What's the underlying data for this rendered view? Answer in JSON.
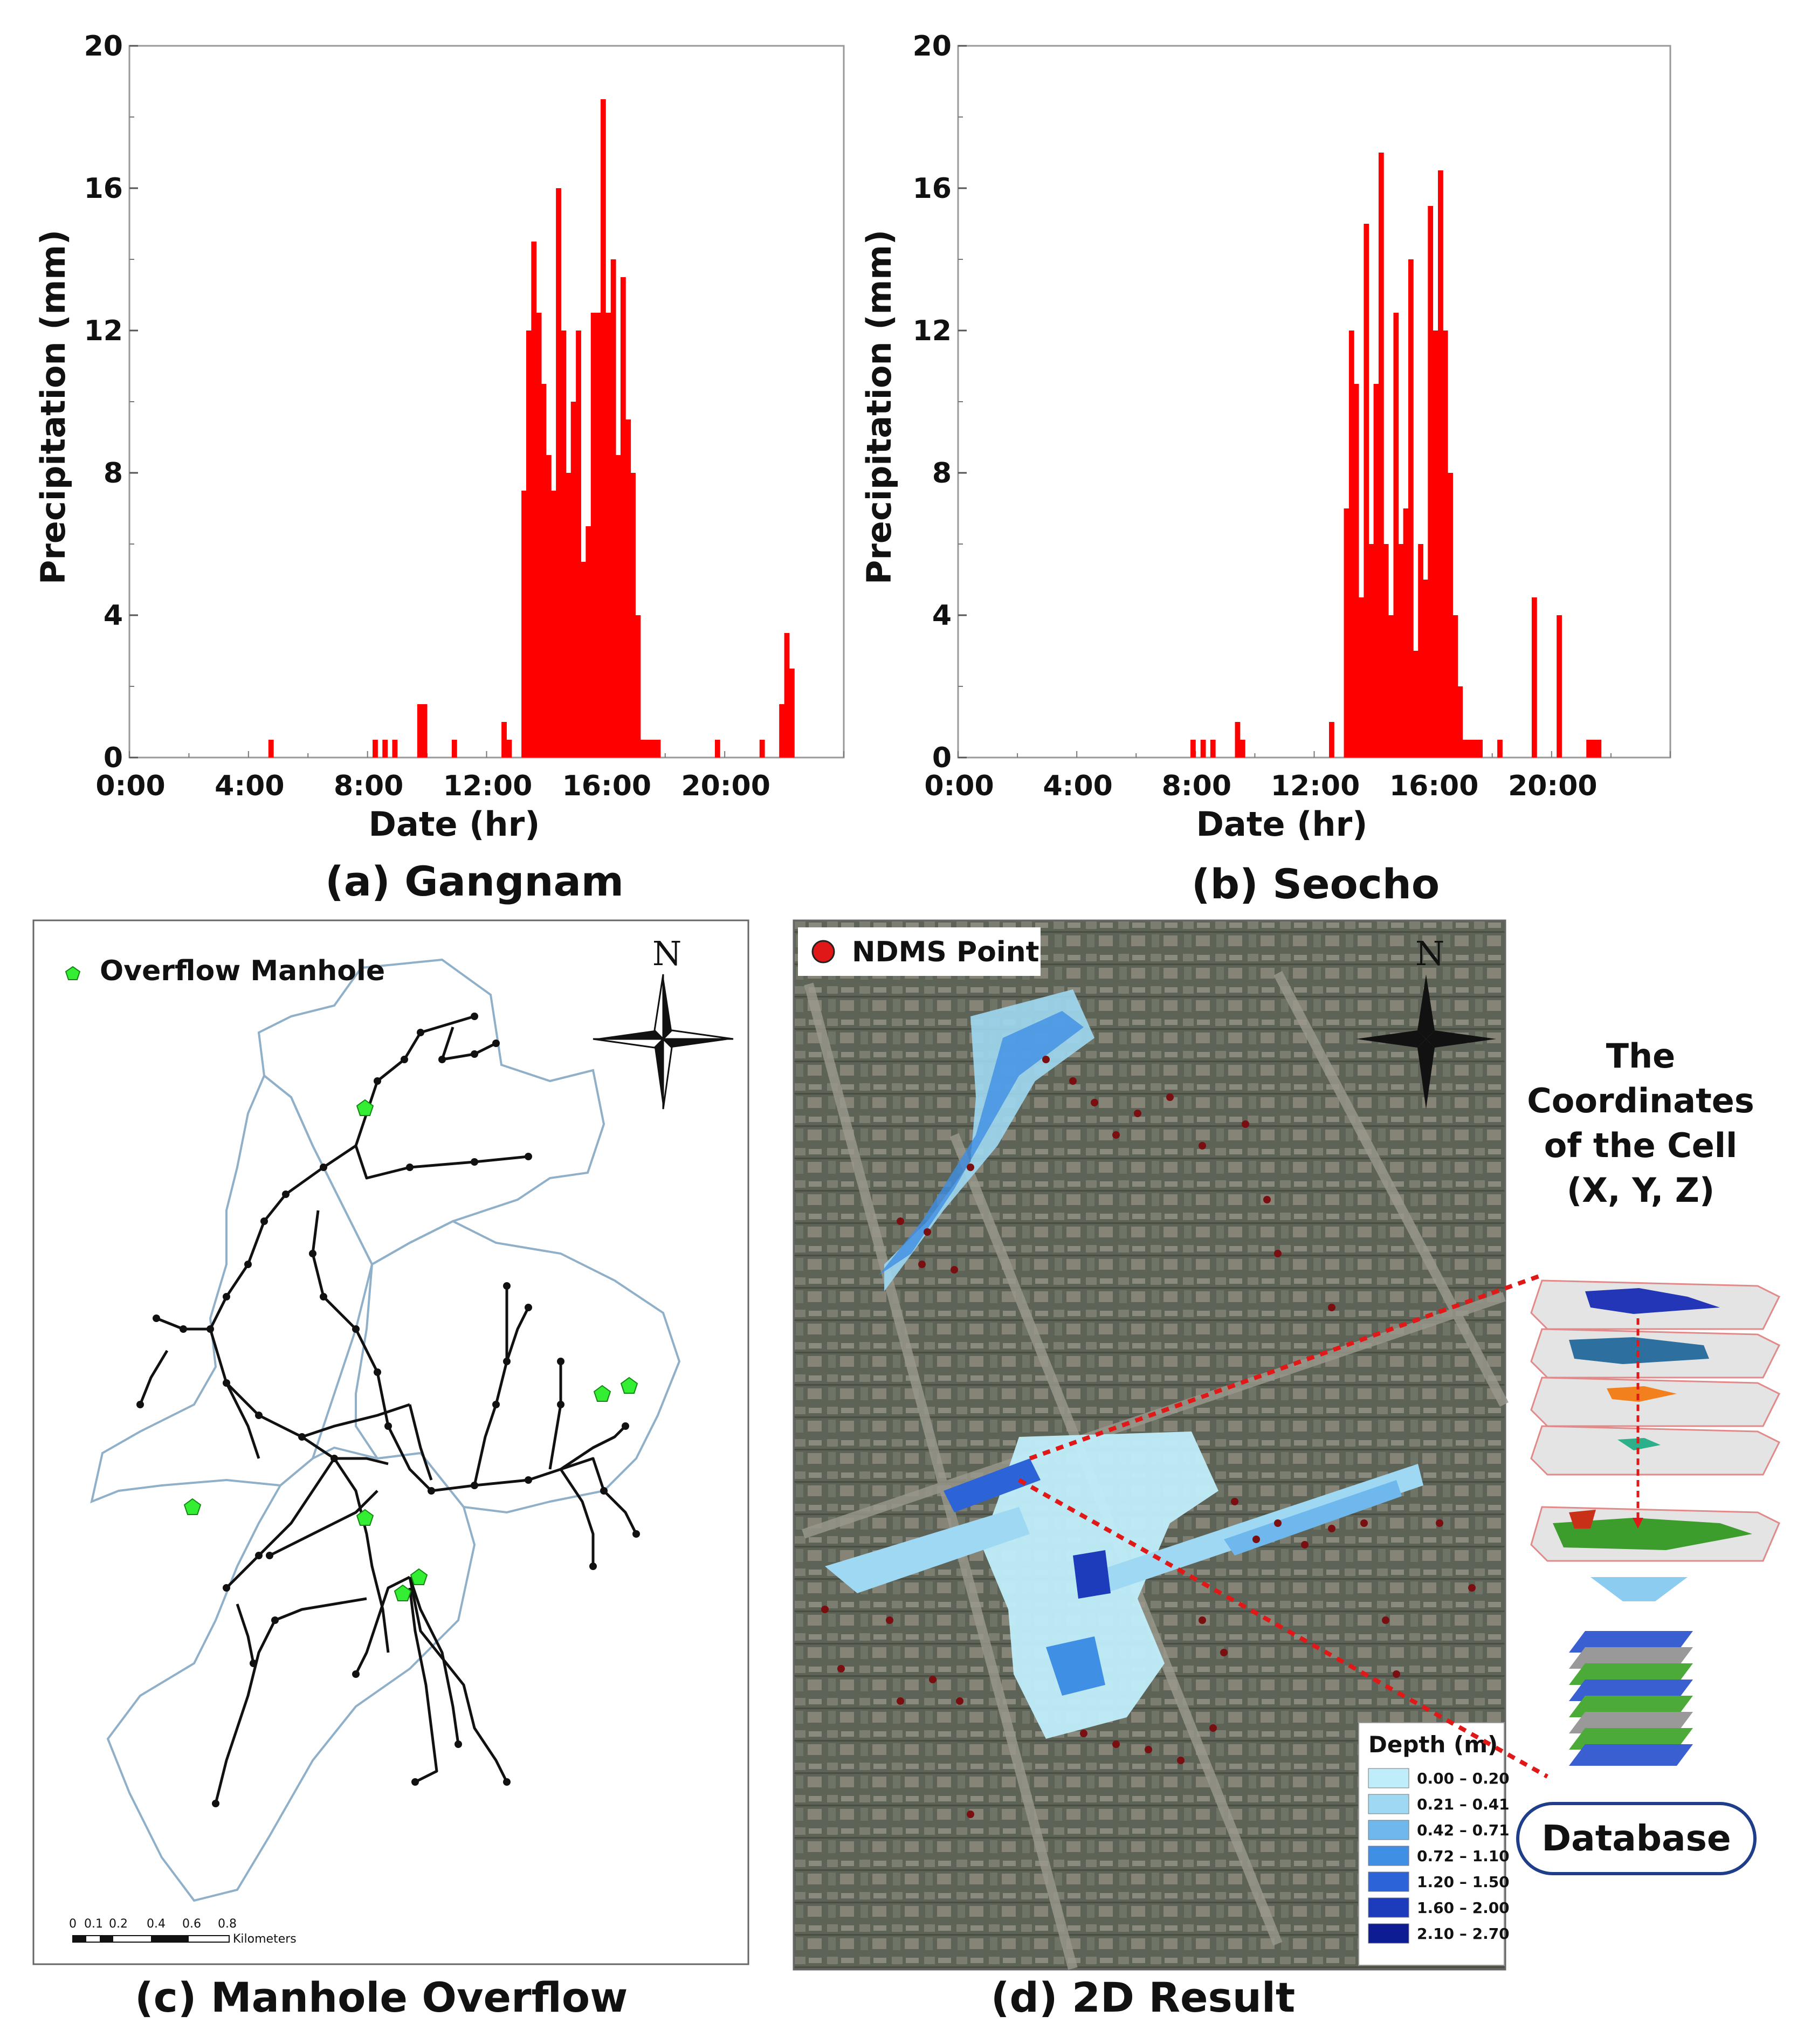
{
  "chart_data": [
    {
      "type": "bar",
      "caption": "(a) Gangnam",
      "xlabel": "Date (hr)",
      "ylabel": "Precipitation (mm)",
      "ylim": [
        0,
        20
      ],
      "yticks": [
        0,
        4,
        8,
        12,
        16,
        20
      ],
      "xlim": [
        0,
        24
      ],
      "xticks": [
        "0:00",
        "4:00",
        "8:00",
        "12:00",
        "16:00",
        "20:00"
      ],
      "bar_color": "#ff0000",
      "bins_per_hour": 6,
      "x": [
        4.67,
        8.17,
        8.5,
        8.83,
        9.67,
        9.83,
        10.83,
        12.5,
        12.67,
        13.17,
        13.33,
        13.5,
        13.67,
        13.83,
        14.0,
        14.17,
        14.33,
        14.5,
        14.67,
        14.83,
        15.0,
        15.17,
        15.33,
        15.5,
        15.67,
        15.83,
        16.0,
        16.17,
        16.33,
        16.5,
        16.67,
        16.83,
        17.0,
        17.17,
        17.33,
        17.5,
        17.67,
        19.67,
        21.17,
        21.83,
        22.0,
        22.17
      ],
      "y": [
        0.5,
        0.5,
        0.5,
        0.5,
        1.5,
        1.5,
        0.5,
        1.0,
        0.5,
        7.5,
        12.0,
        14.5,
        12.5,
        10.5,
        8.5,
        7.5,
        16.0,
        12.0,
        8.0,
        10.0,
        12.0,
        5.5,
        6.5,
        12.5,
        12.5,
        18.5,
        12.5,
        14.0,
        8.5,
        13.5,
        9.5,
        8.0,
        4.0,
        0.5,
        0.5,
        0.5,
        0.5,
        0.5,
        0.5,
        1.5,
        3.5,
        2.5
      ]
    },
    {
      "type": "bar",
      "caption": "(b) Seocho",
      "xlabel": "Date (hr)",
      "ylabel": "Precipitation (mm)",
      "ylim": [
        0,
        20
      ],
      "yticks": [
        0,
        4,
        8,
        12,
        16,
        20
      ],
      "xlim": [
        0,
        24
      ],
      "xticks": [
        "0:00",
        "4:00",
        "8:00",
        "12:00",
        "16:00",
        "20:00"
      ],
      "bar_color": "#ff0000",
      "bins_per_hour": 6,
      "x": [
        7.83,
        8.17,
        8.5,
        9.33,
        9.5,
        12.5,
        13.0,
        13.17,
        13.33,
        13.5,
        13.67,
        13.83,
        14.0,
        14.17,
        14.33,
        14.5,
        14.67,
        14.83,
        15.0,
        15.17,
        15.33,
        15.5,
        15.67,
        15.83,
        16.0,
        16.17,
        16.33,
        16.5,
        16.67,
        16.83,
        17.0,
        17.17,
        17.33,
        17.5,
        18.17,
        19.33,
        20.17,
        21.17,
        21.33,
        21.5
      ],
      "y": [
        0.5,
        0.5,
        0.5,
        1.0,
        0.5,
        1.0,
        7.0,
        12.0,
        10.5,
        4.5,
        15.0,
        6.0,
        10.5,
        17.0,
        6.0,
        4.0,
        12.5,
        6.0,
        7.0,
        14.0,
        3.0,
        6.0,
        5.0,
        15.5,
        12.0,
        16.5,
        12.0,
        8.0,
        4.0,
        2.0,
        0.5,
        0.5,
        0.5,
        0.5,
        0.5,
        4.5,
        4.0,
        0.5,
        0.5,
        0.5
      ]
    }
  ],
  "panels": {
    "c": {
      "caption": "(c) Manhole Overflow",
      "legend": "Overflow Manhole",
      "north": "N",
      "scale": {
        "ticks": [
          "0",
          "0.1",
          "0.2",
          "0.4",
          "0.6",
          "0.8"
        ],
        "unit": "Kilometers"
      },
      "manhole_color": "#33ee33"
    },
    "d": {
      "caption": "(d) 2D Result",
      "legend": "NDMS Point",
      "north": "N",
      "side_text": [
        "The",
        "Coordinates",
        "of the Cell",
        "(X, Y, Z)"
      ],
      "database_label": "Database",
      "depth_legend": {
        "title": "Depth (m)",
        "items": [
          {
            "label": "0.00 – 0.20",
            "color": "#bfeefa"
          },
          {
            "label": "0.21 – 0.41",
            "color": "#9fd8f2"
          },
          {
            "label": "0.42 – 0.71",
            "color": "#6fb8ee"
          },
          {
            "label": "0.72 – 1.10",
            "color": "#3f8fe4"
          },
          {
            "label": "1.20 – 1.50",
            "color": "#2c63d6"
          },
          {
            "label": "1.60 – 2.00",
            "color": "#1c3cbc"
          },
          {
            "label": "2.10 – 2.70",
            "color": "#0e1c94"
          }
        ]
      }
    }
  }
}
